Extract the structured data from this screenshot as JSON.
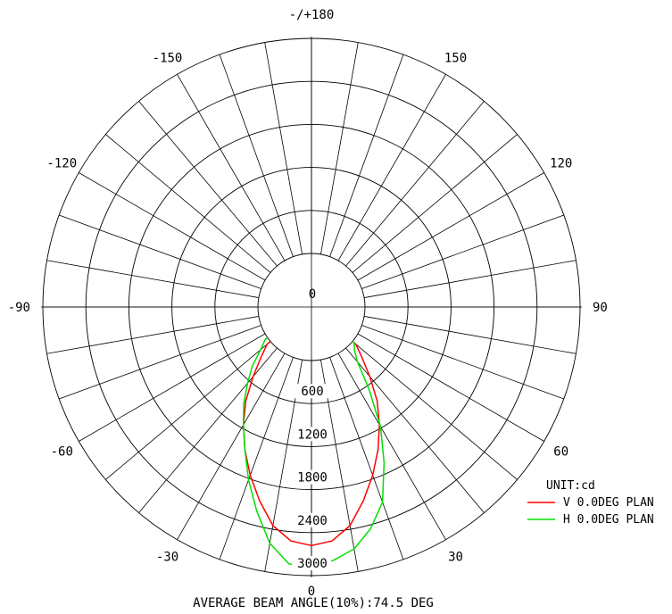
{
  "chart_data": {
    "type": "polar",
    "subtitle_footer": "AVERAGE BEAM ANGLE(10%):74.5 DEG",
    "unit_label": "UNIT:cd",
    "angle_labels": [
      {
        "angle": 180,
        "text": "-/+180"
      },
      {
        "angle": 150,
        "text": "150"
      },
      {
        "angle": 120,
        "text": "120"
      },
      {
        "angle": 90,
        "text": "90"
      },
      {
        "angle": 60,
        "text": "60"
      },
      {
        "angle": 30,
        "text": "30"
      },
      {
        "angle": 0,
        "text": "0"
      },
      {
        "angle": -30,
        "text": "-30"
      },
      {
        "angle": -60,
        "text": "-60"
      },
      {
        "angle": -90,
        "text": "-90"
      },
      {
        "angle": -120,
        "text": "-120"
      },
      {
        "angle": -150,
        "text": "-150"
      }
    ],
    "radial_ticks": [
      0,
      600,
      1200,
      1800,
      2400,
      3000
    ],
    "radial_tick_labels": [
      "0",
      "600",
      "1200",
      "1800",
      "2400",
      "3000"
    ],
    "r_max": 3000,
    "angular_step_deg": 10,
    "series": [
      {
        "name": "V 0.0DEG PLAN",
        "color": "#ff0000",
        "points": [
          {
            "angle": -50,
            "r": 60
          },
          {
            "angle": -45,
            "r": 250
          },
          {
            "angle": -40,
            "r": 520
          },
          {
            "angle": -35,
            "r": 850
          },
          {
            "angle": -30,
            "r": 1150
          },
          {
            "angle": -25,
            "r": 1450
          },
          {
            "angle": -20,
            "r": 1750
          },
          {
            "angle": -15,
            "r": 2050
          },
          {
            "angle": -10,
            "r": 2350
          },
          {
            "angle": -5,
            "r": 2530
          },
          {
            "angle": 0,
            "r": 2580
          },
          {
            "angle": 5,
            "r": 2530
          },
          {
            "angle": 10,
            "r": 2350
          },
          {
            "angle": 15,
            "r": 2050
          },
          {
            "angle": 20,
            "r": 1750
          },
          {
            "angle": 25,
            "r": 1450
          },
          {
            "angle": 30,
            "r": 1150
          },
          {
            "angle": 35,
            "r": 850
          },
          {
            "angle": 40,
            "r": 520
          },
          {
            "angle": 45,
            "r": 250
          },
          {
            "angle": 50,
            "r": 60
          }
        ]
      },
      {
        "name": "H 0.0DEG PLAN",
        "color": "#00e000",
        "points": [
          {
            "angle": -55,
            "r": 40
          },
          {
            "angle": -50,
            "r": 180
          },
          {
            "angle": -45,
            "r": 420
          },
          {
            "angle": -40,
            "r": 640
          },
          {
            "angle": -35,
            "r": 900
          },
          {
            "angle": -30,
            "r": 1150
          },
          {
            "angle": -25,
            "r": 1450
          },
          {
            "angle": -20,
            "r": 1820
          },
          {
            "angle": -15,
            "r": 2200
          },
          {
            "angle": -10,
            "r": 2600
          },
          {
            "angle": -5,
            "r": 2850
          },
          {
            "angle": 0,
            "r": 2870
          },
          {
            "angle": 5,
            "r": 2800
          },
          {
            "angle": 10,
            "r": 2680
          },
          {
            "angle": 15,
            "r": 2450
          },
          {
            "angle": 20,
            "r": 2150
          },
          {
            "angle": 25,
            "r": 1650
          },
          {
            "angle": 30,
            "r": 1180
          },
          {
            "angle": 35,
            "r": 650
          },
          {
            "angle": 40,
            "r": 250
          },
          {
            "angle": 45,
            "r": 100
          },
          {
            "angle": 50,
            "r": 30
          }
        ]
      }
    ],
    "legend": {
      "position": "bottom-right"
    }
  }
}
